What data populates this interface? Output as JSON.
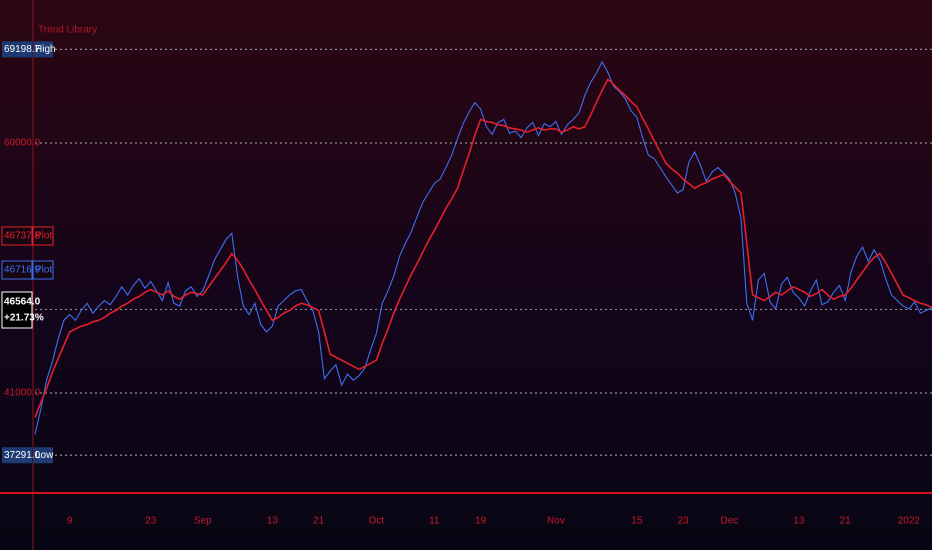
{
  "chart_data": {
    "type": "line",
    "title": "Trend Library",
    "log_scale": true,
    "grid": true,
    "categories": [
      null,
      null,
      null,
      null,
      null,
      null,
      "9",
      null,
      null,
      null,
      null,
      null,
      null,
      null,
      null,
      null,
      null,
      null,
      null,
      null,
      "23",
      null,
      null,
      null,
      null,
      null,
      null,
      null,
      null,
      "Sep",
      null,
      null,
      null,
      null,
      null,
      null,
      null,
      null,
      null,
      null,
      null,
      "13",
      null,
      null,
      null,
      null,
      null,
      null,
      null,
      "21",
      null,
      null,
      null,
      null,
      null,
      null,
      null,
      null,
      null,
      "Oct",
      null,
      null,
      null,
      null,
      null,
      null,
      null,
      null,
      null,
      "11",
      null,
      null,
      null,
      null,
      null,
      null,
      null,
      "19",
      null,
      null,
      null,
      null,
      null,
      null,
      null,
      null,
      null,
      null,
      null,
      null,
      "Nov",
      null,
      null,
      null,
      null,
      null,
      null,
      null,
      null,
      null,
      null,
      null,
      null,
      null,
      "15",
      null,
      null,
      null,
      null,
      null,
      null,
      null,
      "23",
      null,
      null,
      null,
      null,
      null,
      null,
      null,
      "Dec",
      null,
      null,
      null,
      null,
      null,
      null,
      null,
      null,
      null,
      null,
      null,
      "13",
      null,
      null,
      null,
      null,
      null,
      null,
      null,
      "21",
      null,
      null,
      null,
      null,
      null,
      null,
      null,
      null,
      null,
      null,
      "2022",
      null,
      null,
      null,
      null
    ],
    "series": [
      {
        "name": "Plot",
        "color": "#e3202c",
        "last_value": 46737.8,
        "values": [
          39500,
          40400,
          41300,
          42300,
          43200,
          44100,
          45000,
          45200,
          45400,
          45500,
          45700,
          45800,
          46000,
          46300,
          46500,
          46800,
          47000,
          47300,
          47500,
          47800,
          48000,
          47800,
          47600,
          47900,
          47500,
          47300,
          47600,
          47800,
          47700,
          47600,
          48200,
          48800,
          49400,
          50000,
          50700,
          50200,
          49500,
          48700,
          48000,
          47200,
          46500,
          45800,
          46000,
          46300,
          46500,
          46800,
          47000,
          46900,
          46700,
          46500,
          45000,
          43500,
          43300,
          43100,
          42900,
          42700,
          42500,
          42700,
          42900,
          43100,
          44200,
          45200,
          46300,
          47300,
          48200,
          49100,
          49900,
          50800,
          51700,
          52500,
          53400,
          54300,
          55100,
          56000,
          57500,
          59000,
          60700,
          62200,
          62000,
          61900,
          61700,
          61600,
          61400,
          61300,
          61200,
          61000,
          61200,
          61400,
          61200,
          61300,
          61300,
          61000,
          61200,
          61500,
          61300,
          61500,
          62600,
          63800,
          65000,
          66100,
          65600,
          65000,
          64500,
          63900,
          63400,
          62300,
          61300,
          60200,
          59200,
          58200,
          57700,
          57300,
          56800,
          56400,
          56000,
          56300,
          56500,
          56800,
          57000,
          57200,
          56600,
          56100,
          55600,
          51500,
          47600,
          47400,
          47200,
          47500,
          47800,
          47600,
          47900,
          48200,
          48000,
          47800,
          47500,
          47700,
          48000,
          47600,
          47300,
          47500,
          47600,
          48100,
          48700,
          49300,
          49900,
          50400,
          50700,
          50000,
          49200,
          48400,
          47600,
          47400,
          47200,
          47000,
          46900,
          46700
        ]
      },
      {
        "name": "Plot",
        "color": "#3d6ff2",
        "last_value": 46716.9,
        "values": [
          38500,
          40000,
          41800,
          43000,
          44500,
          45800,
          46200,
          45800,
          46500,
          47000,
          46300,
          46800,
          47200,
          46900,
          47500,
          48200,
          47600,
          48300,
          48800,
          48100,
          48600,
          47900,
          47200,
          48500,
          47000,
          46800,
          47900,
          48200,
          47500,
          47900,
          49000,
          50200,
          51000,
          51800,
          52300,
          49000,
          46800,
          46200,
          47000,
          45500,
          45000,
          45400,
          46800,
          47200,
          47600,
          47900,
          48000,
          47200,
          46500,
          45000,
          41900,
          42400,
          42800,
          41500,
          42200,
          41800,
          42100,
          42600,
          43800,
          44900,
          47000,
          47900,
          49000,
          50500,
          51500,
          52400,
          53600,
          54800,
          55600,
          56400,
          56800,
          57800,
          58900,
          60400,
          61800,
          62900,
          63800,
          63200,
          61500,
          60800,
          61900,
          62200,
          60900,
          61100,
          60500,
          61400,
          61900,
          60700,
          61800,
          61500,
          62000,
          60800,
          61700,
          62200,
          62800,
          64500,
          65800,
          66700,
          67900,
          66800,
          65400,
          64900,
          64200,
          63000,
          62400,
          60500,
          58900,
          58600,
          57800,
          57000,
          56300,
          55600,
          55900,
          58300,
          59200,
          58000,
          56600,
          57400,
          57800,
          57300,
          56800,
          55600,
          53500,
          47000,
          45800,
          48700,
          49200,
          47100,
          46600,
          48400,
          48900,
          47800,
          47400,
          46800,
          47900,
          48700,
          46900,
          47100,
          47800,
          48300,
          47200,
          49300,
          50500,
          51200,
          50100,
          51000,
          50200,
          48800,
          47600,
          47200,
          46800,
          46600,
          47100,
          46300,
          46500,
          46700
        ]
      }
    ],
    "ylim": [
      35370,
      74600
    ],
    "yticks": [
      {
        "value": 60000,
        "label": "60000.0"
      },
      {
        "value": 41000,
        "label": "41000.0"
      }
    ],
    "price_levels": [
      {
        "name": "High",
        "value": 69198.7,
        "label": "69198.7"
      },
      {
        "name": "Low",
        "value": 37291,
        "label": "37291.0"
      }
    ],
    "last_price": {
      "value": 46564,
      "label": "46564.0",
      "change": 21.73,
      "change_label": "+21.73%"
    }
  }
}
